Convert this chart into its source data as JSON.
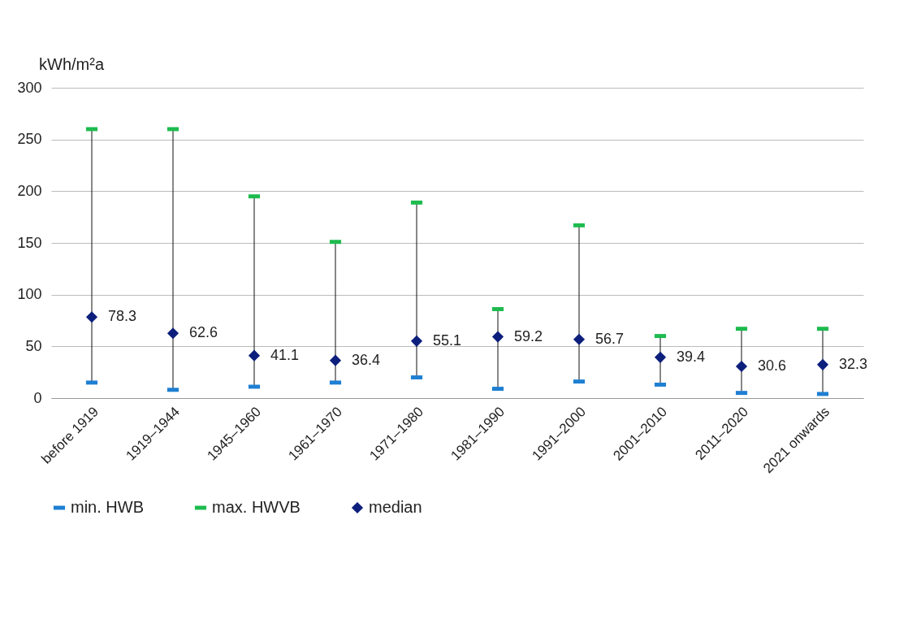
{
  "chart_data": {
    "type": "scatter",
    "ylabel": "kWh/m²a",
    "categories": [
      "before 1919",
      "1919–1944",
      "1945–1960",
      "1961–1970",
      "1971–1980",
      "1981–1990",
      "1991–2000",
      "2001–2010",
      "2011–2020",
      "2021 onwards"
    ],
    "series": [
      {
        "name": "min. HWB",
        "color": "#1e7fd2",
        "values": [
          15,
          8,
          11,
          15,
          20,
          9,
          16,
          13,
          5,
          4
        ]
      },
      {
        "name": "max. HWVB",
        "color": "#1dbb4e",
        "values": [
          260,
          260,
          195,
          151,
          189,
          86,
          167,
          60,
          67,
          67
        ]
      },
      {
        "name": "median",
        "color": "#0d1f7c",
        "marker": "diamond",
        "values": [
          78.3,
          62.6,
          41.1,
          36.4,
          55.1,
          59.2,
          56.7,
          39.4,
          30.6,
          32.3
        ],
        "value_labels": [
          "78.3",
          "62.6",
          "41.1",
          "36.4",
          "55.1",
          "59.2",
          "56.7",
          "39.4",
          "30.6",
          "32.3"
        ]
      }
    ],
    "ylim": [
      0,
      300
    ],
    "yticks": [
      0,
      50,
      100,
      150,
      200,
      250,
      300
    ],
    "grid": "y",
    "legend": "bottom"
  }
}
